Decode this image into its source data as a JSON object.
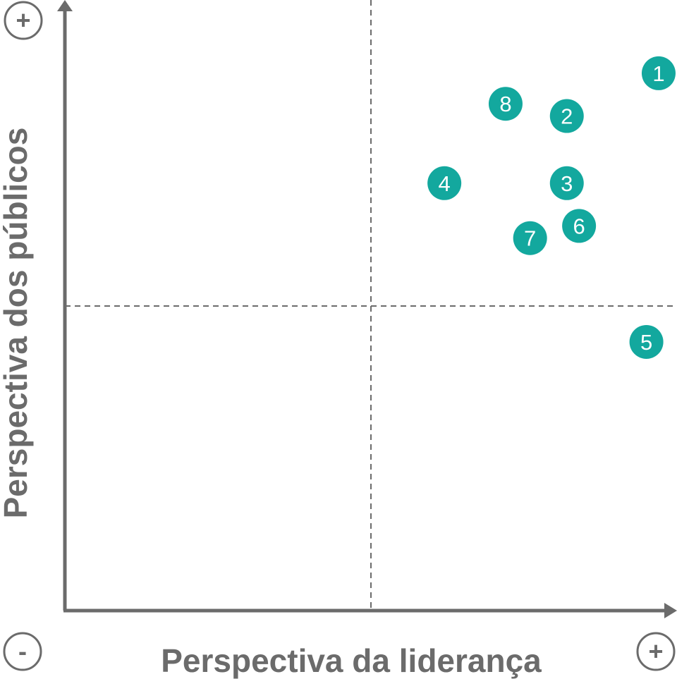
{
  "chart_data": {
    "type": "scatter",
    "xlabel": "Perspectiva da liderança",
    "ylabel": "Perspectiva dos públicos",
    "x_min_label": "-",
    "x_max_label": "+",
    "y_max_label": "+",
    "xlim": [
      0,
      10
    ],
    "ylim": [
      0,
      10
    ],
    "quadrant_divider": {
      "x": 5,
      "y": 5
    },
    "grid": false,
    "point_color": "#13a89e",
    "axis_color": "#6b6b6b",
    "points": [
      {
        "label": "1",
        "x": 9.7,
        "y": 8.8
      },
      {
        "label": "2",
        "x": 8.2,
        "y": 8.1
      },
      {
        "label": "3",
        "x": 8.2,
        "y": 7.0
      },
      {
        "label": "4",
        "x": 6.2,
        "y": 7.0
      },
      {
        "label": "5",
        "x": 9.5,
        "y": 4.4
      },
      {
        "label": "6",
        "x": 8.4,
        "y": 6.3
      },
      {
        "label": "7",
        "x": 7.6,
        "y": 6.1
      },
      {
        "label": "8",
        "x": 7.2,
        "y": 8.3
      }
    ]
  }
}
